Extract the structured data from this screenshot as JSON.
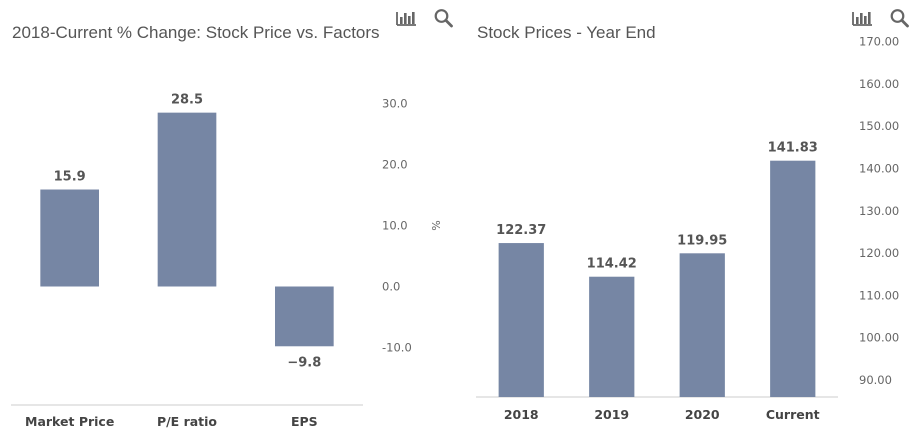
{
  "chart_data": [
    {
      "type": "bar",
      "title": "2018-Current % Change: Stock Price vs. Factors",
      "categories": [
        "Market Price",
        "P/E ratio",
        "EPS"
      ],
      "values": [
        15.9,
        28.5,
        -9.8
      ],
      "value_labels": [
        "15.9",
        "28.5",
        "−9.8"
      ],
      "ylabel": "%",
      "ylim": [
        -15,
        35
      ],
      "yticks": [
        -10,
        0,
        10,
        20,
        30
      ],
      "ytick_labels": [
        "-10.0",
        "0.0",
        "10.0",
        "20.0",
        "30.0"
      ],
      "axis_side": "right",
      "grid": false,
      "color": "#7686a4"
    },
    {
      "type": "bar",
      "title": "Stock Prices - Year End",
      "categories": [
        "2018",
        "2019",
        "2020",
        "Current"
      ],
      "values": [
        122.37,
        114.42,
        119.95,
        141.83
      ],
      "value_labels": [
        "122.37",
        "114.42",
        "119.95",
        "141.83"
      ],
      "ylabel": "",
      "ylim": [
        86,
        172
      ],
      "yticks": [
        90,
        100,
        110,
        120,
        130,
        140,
        150,
        160,
        170
      ],
      "ytick_labels": [
        "90.00",
        "100.00",
        "110.00",
        "120.00",
        "130.00",
        "140.00",
        "150.00",
        "160.00",
        "170.00"
      ],
      "axis_side": "right",
      "grid": false,
      "color": "#7686a4"
    }
  ],
  "toolbar": {
    "chart_icon": "bar-chart-icon",
    "search_icon": "magnifier-icon"
  }
}
